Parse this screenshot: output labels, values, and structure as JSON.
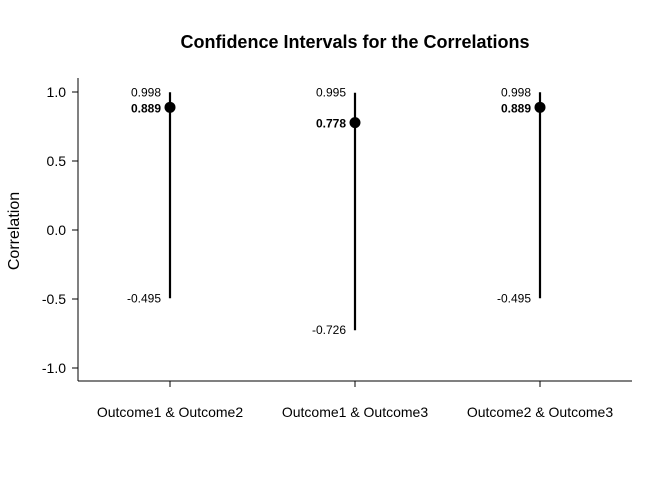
{
  "chart_data": {
    "type": "errorbar",
    "title": "Confidence Intervals for the Correlations",
    "ylabel": "Correlation",
    "xlabel": "",
    "ylim": [
      -1.1,
      1.1
    ],
    "yticks": [
      "1.0",
      "0.5",
      "0.0",
      "-0.5",
      "-1.0"
    ],
    "ytick_values": [
      1.0,
      0.5,
      0.0,
      -0.5,
      -1.0
    ],
    "categories": [
      "Outcome1 & Outcome2",
      "Outcome1 & Outcome3",
      "Outcome2 & Outcome3"
    ],
    "estimates": [
      0.889,
      0.778,
      0.889
    ],
    "lower": [
      -0.495,
      -0.726,
      -0.495
    ],
    "upper": [
      0.998,
      0.995,
      0.998
    ],
    "estimate_labels": [
      "0.889",
      "0.778",
      "0.889"
    ],
    "lower_labels": [
      "-0.495",
      "-0.726",
      "-0.495"
    ],
    "upper_labels": [
      "0.998",
      "0.995",
      "0.998"
    ],
    "grid": false,
    "color": "#000000"
  }
}
